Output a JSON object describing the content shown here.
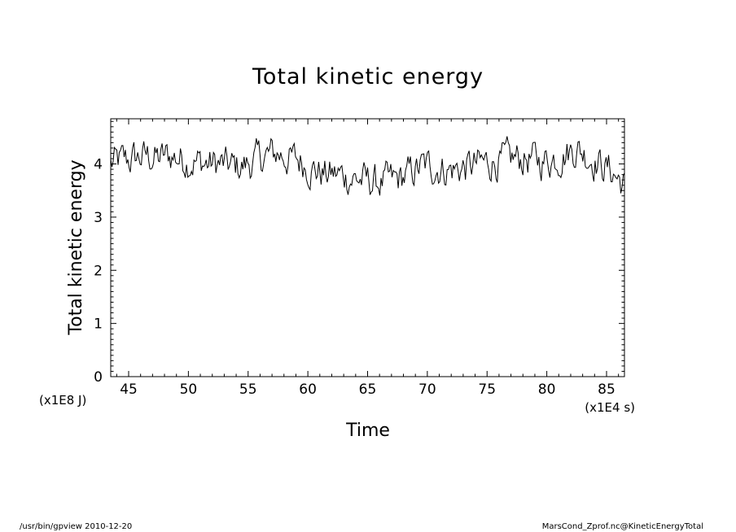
{
  "chart_data": {
    "type": "line",
    "title": "Total kinetic energy",
    "xlabel": "Time",
    "ylabel": "Total kinetic energy",
    "x_unit": "(x1E4 s)",
    "y_unit": "(x1E8 J)",
    "xlim": [
      43.5,
      86.5
    ],
    "ylim": [
      0,
      4.85
    ],
    "x_ticks": [
      "45",
      "50",
      "55",
      "60",
      "65",
      "70",
      "75",
      "80",
      "85"
    ],
    "y_ticks": [
      "0",
      "1",
      "2",
      "3",
      "4"
    ],
    "grid": false,
    "series": [
      {
        "x": [
          43.5,
          44.5,
          45.5,
          46.5,
          47.5,
          48.5,
          49.5,
          50.5,
          51.5,
          52.5,
          53.5,
          54.5,
          55.5,
          56.5,
          57.5,
          58.5,
          59.5,
          60.5,
          61.5,
          62.5,
          63.5,
          64.5,
          65.5,
          66.5,
          67.5,
          68.5,
          69.5,
          70.5,
          71.5,
          72.5,
          73.5,
          74.5,
          75.5,
          76.5,
          77.5,
          78.5,
          79.5,
          80.5,
          81.5,
          82.5,
          83.5,
          84.5,
          85.5,
          86.5
        ],
        "y": [
          4.0,
          4.05,
          4.1,
          4.15,
          4.1,
          4.15,
          4.1,
          4.05,
          4.0,
          4.0,
          3.95,
          3.95,
          4.05,
          4.15,
          4.2,
          4.1,
          4.05,
          3.9,
          3.8,
          3.8,
          3.75,
          3.7,
          3.65,
          3.65,
          3.7,
          3.8,
          3.95,
          3.95,
          3.9,
          3.9,
          3.95,
          4.0,
          4.05,
          4.05,
          4.1,
          4.1,
          4.05,
          4.1,
          4.2,
          4.3,
          4.15,
          4.0,
          3.85,
          3.6
        ]
      }
    ]
  },
  "footer": {
    "left": "/usr/bin/gpview   2010-12-20",
    "right": "MarsCond_Zprof.nc@KineticEnergyTotal"
  }
}
